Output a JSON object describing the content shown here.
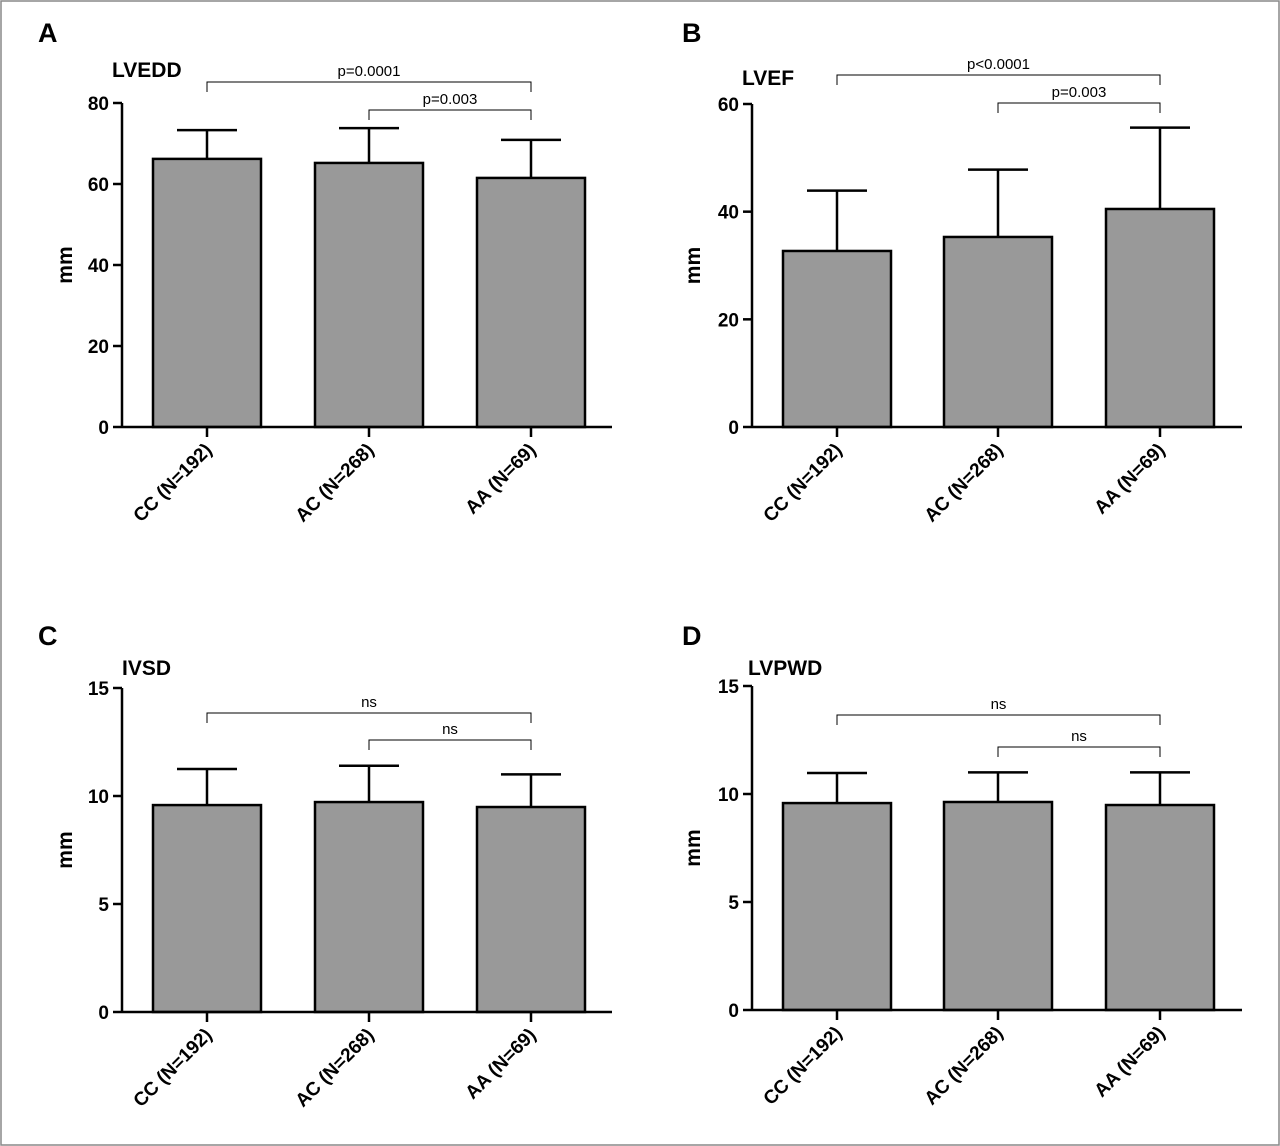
{
  "chart_data": [
    {
      "type": "bar",
      "panel": "A",
      "title": "LVEDD",
      "ylabel": "mm",
      "xlabel": "",
      "ylim": [
        0,
        80
      ],
      "yticks": [
        0,
        20,
        40,
        60,
        80
      ],
      "categories": [
        "CC (N=192)",
        "AC (N=268)",
        "AA (N=69)"
      ],
      "values": [
        66.2,
        65.2,
        61.5
      ],
      "error_upper": [
        73.3,
        73.8,
        70.9
      ],
      "comparisons": [
        {
          "from": 0,
          "to": 2,
          "label": "p=0.0001"
        },
        {
          "from": 1,
          "to": 2,
          "label": "p=0.003"
        }
      ]
    },
    {
      "type": "bar",
      "panel": "B",
      "title": "LVEF",
      "ylabel": "mm",
      "xlabel": "",
      "ylim": [
        0,
        60
      ],
      "yticks": [
        0,
        20,
        40,
        60
      ],
      "categories": [
        "CC (N=192)",
        "AC (N=268)",
        "AA (N=69)"
      ],
      "values": [
        32.7,
        35.3,
        40.5
      ],
      "error_upper": [
        43.9,
        47.8,
        55.6
      ],
      "comparisons": [
        {
          "from": 0,
          "to": 2,
          "label": "p<0.0001"
        },
        {
          "from": 1,
          "to": 2,
          "label": "p=0.003"
        }
      ]
    },
    {
      "type": "bar",
      "panel": "C",
      "title": "IVSD",
      "ylabel": "mm",
      "xlabel": "",
      "ylim": [
        0,
        15
      ],
      "yticks": [
        0,
        5,
        10,
        15
      ],
      "categories": [
        "CC (N=192)",
        "AC (N=268)",
        "AA (N=69)"
      ],
      "values": [
        9.58,
        9.72,
        9.49
      ],
      "error_upper": [
        11.25,
        11.4,
        11.0
      ],
      "comparisons": [
        {
          "from": 0,
          "to": 2,
          "label": "ns"
        },
        {
          "from": 1,
          "to": 2,
          "label": "ns"
        }
      ]
    },
    {
      "type": "bar",
      "panel": "D",
      "title": "LVPWD",
      "ylabel": "mm",
      "xlabel": "",
      "ylim": [
        0,
        15
      ],
      "yticks": [
        0,
        5,
        10,
        15
      ],
      "categories": [
        "CC (N=192)",
        "AC (N=268)",
        "AA (N=69)"
      ],
      "values": [
        9.58,
        9.63,
        9.49
      ],
      "error_upper": [
        10.97,
        11.0,
        11.0
      ],
      "comparisons": [
        {
          "from": 0,
          "to": 2,
          "label": "ns"
        },
        {
          "from": 1,
          "to": 2,
          "label": "ns"
        }
      ]
    }
  ],
  "colors": {
    "bar_fill": "#999999",
    "stroke": "#000000"
  }
}
